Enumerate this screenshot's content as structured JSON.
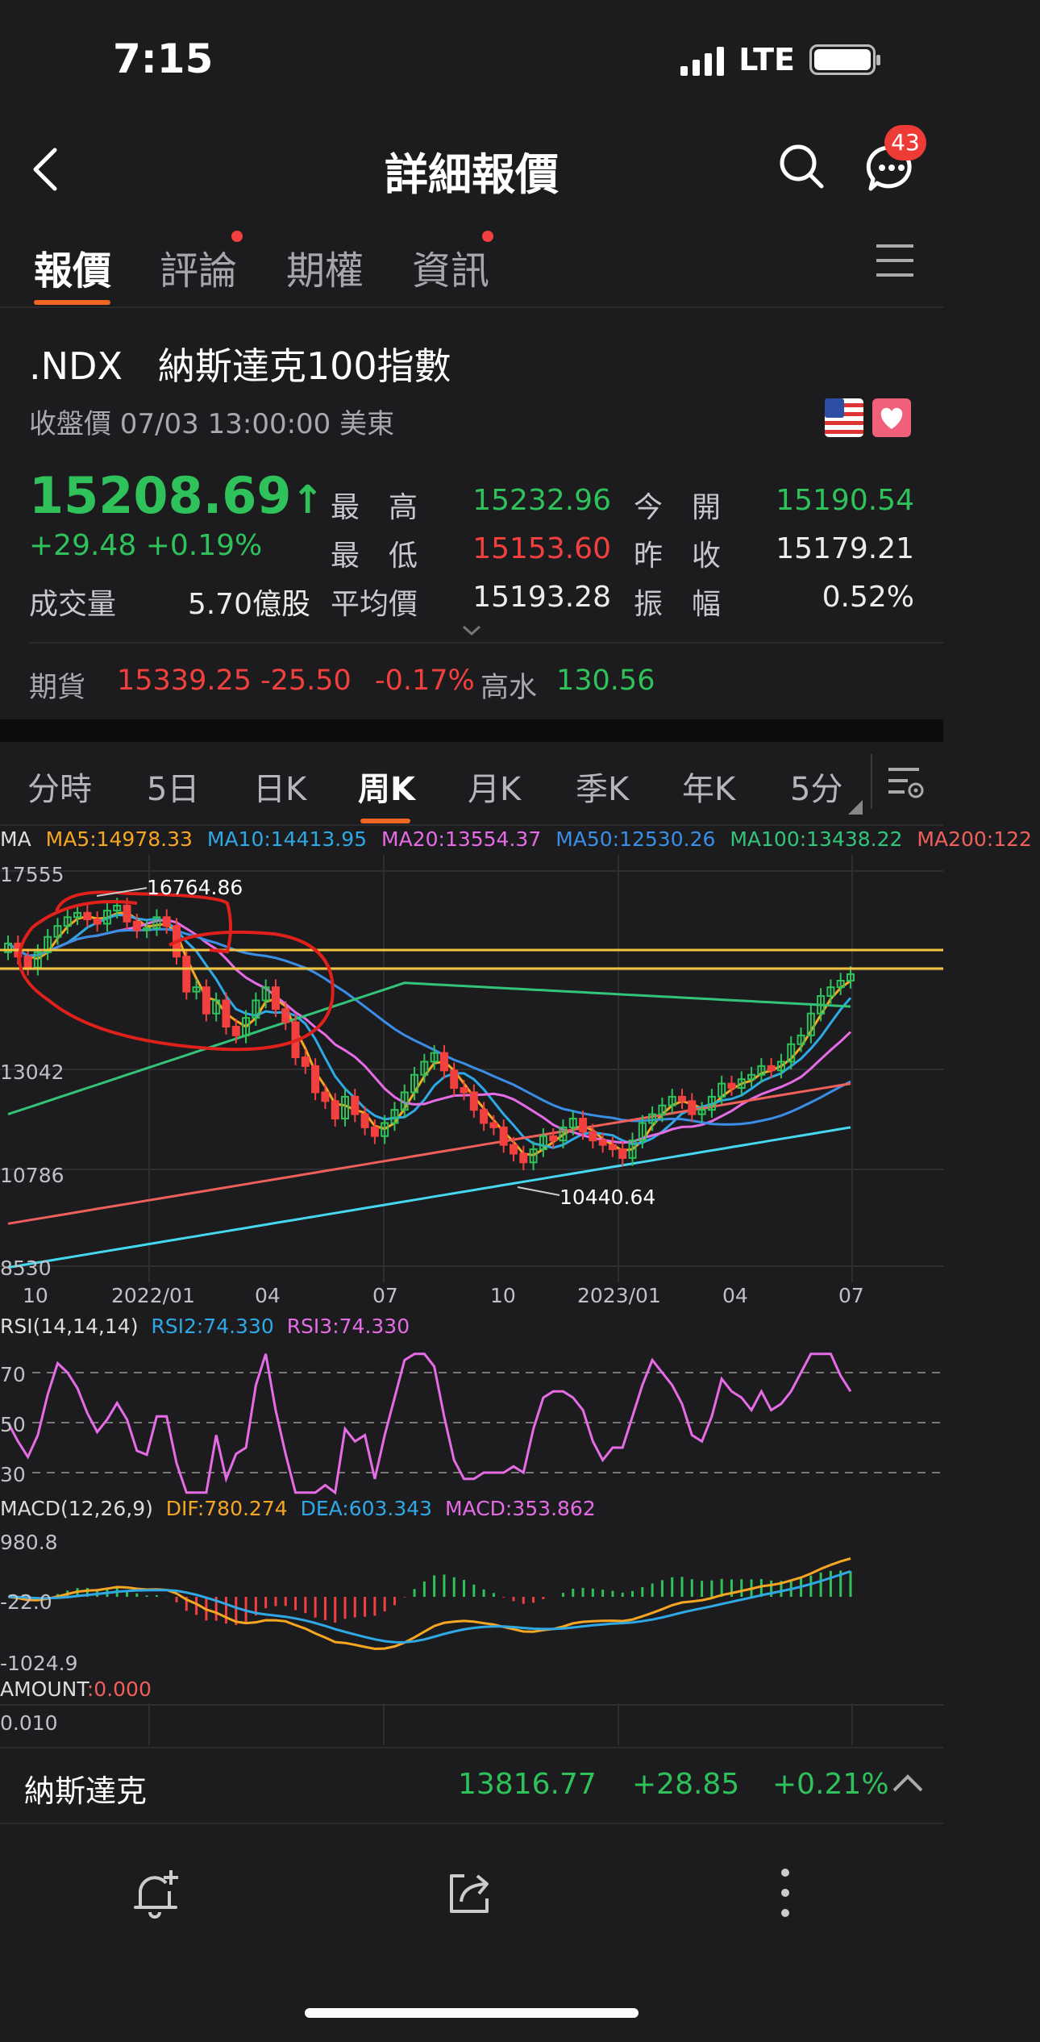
{
  "status_bar": {
    "time": "7:15",
    "network": "LTE"
  },
  "nav": {
    "title": "詳細報價",
    "notification_count": "43"
  },
  "tabs": [
    {
      "label": "報價",
      "active": true,
      "dot": false
    },
    {
      "label": "評論",
      "active": false,
      "dot": true
    },
    {
      "label": "期權",
      "active": false,
      "dot": false
    },
    {
      "label": "資訊",
      "active": false,
      "dot": true
    }
  ],
  "quote": {
    "symbol": ".NDX",
    "name": "納斯達克100指數",
    "close_time": "收盤價 07/03 13:00:00 美東",
    "price": "15208.69",
    "change": "+29.48",
    "change_pct": "+0.19%",
    "volume_label": "成交量",
    "volume_value": "5.70億股",
    "stats": [
      {
        "label": "最　高",
        "value": "15232.96",
        "color": "#2fc25b"
      },
      {
        "label": "今　開",
        "value": "15190.54",
        "color": "#2fc25b"
      },
      {
        "label": "最　低",
        "value": "15153.60",
        "color": "#f2403e"
      },
      {
        "label": "昨　收",
        "value": "15179.21",
        "color": "#ececec"
      },
      {
        "label": "平均價",
        "value": "15193.28",
        "color": "#ececec"
      },
      {
        "label": "振　幅",
        "value": "0.52%",
        "color": "#ececec"
      }
    ]
  },
  "futures": {
    "label": "期貨",
    "price": "15339.25",
    "change": "-25.50",
    "change_pct": "-0.17%",
    "premium_label": "高水",
    "premium": "130.56"
  },
  "period_tabs": [
    "分時",
    "5日",
    "日K",
    "周K",
    "月K",
    "季K",
    "年K",
    "5分"
  ],
  "active_period": "周K",
  "chart_data": {
    "type": "candlestick",
    "ma_title": "MA",
    "ma": [
      {
        "name": "MA5",
        "value": "MA5:14978.33",
        "color": "#f5a623"
      },
      {
        "name": "MA10",
        "value": "MA10:14413.95",
        "color": "#2fa8e6"
      },
      {
        "name": "MA20",
        "value": "MA20:13554.37",
        "color": "#e66ce6"
      },
      {
        "name": "MA50",
        "value": "MA50:12530.26",
        "color": "#3a8ee6"
      },
      {
        "name": "MA100",
        "value": "MA100:13438.22",
        "color": "#33c47a"
      },
      {
        "name": "MA200",
        "value": "MA200:122",
        "color": "#f0605a"
      }
    ],
    "y_ticks": [
      "17555",
      "13042",
      "10786",
      "8530"
    ],
    "x_ticks": [
      "10",
      "2022/01",
      "04",
      "07",
      "10",
      "2023/01",
      "04",
      "07"
    ],
    "high_label": "16764.86",
    "low_label": "10440.64",
    "closes": [
      15900,
      15600,
      15350,
      15700,
      16050,
      16300,
      16500,
      16600,
      16450,
      16350,
      16650,
      16764,
      16400,
      16200,
      16250,
      16500,
      16300,
      15600,
      14800,
      14900,
      14300,
      14600,
      14000,
      13800,
      14200,
      14600,
      14900,
      14400,
      14100,
      13300,
      13100,
      12500,
      12300,
      11900,
      12400,
      12000,
      11700,
      11500,
      11800,
      12100,
      12500,
      12900,
      13200,
      13400,
      13000,
      12600,
      12500,
      12100,
      11800,
      11700,
      11300,
      11100,
      10900,
      11200,
      11500,
      11400,
      11700,
      11900,
      11600,
      11400,
      11300,
      11200,
      11000,
      11400,
      11800,
      12000,
      12200,
      12400,
      12300,
      12000,
      12100,
      12400,
      12700,
      12600,
      12800,
      12900,
      13100,
      13000,
      13200,
      13600,
      13800,
      14300,
      14700,
      14900,
      15050,
      15200
    ]
  },
  "rsi": {
    "title": "RSI(14,14,14)",
    "rsi2": "RSI2:74.330",
    "rsi3": "RSI3:74.330",
    "levels": [
      "70",
      "50",
      "30"
    ]
  },
  "macd": {
    "title": "MACD(12,26,9)",
    "dif": "DIF:780.274",
    "dea": "DEA:603.343",
    "macd": "MACD:353.862",
    "ticks": [
      "980.8",
      "-22.0",
      "-1024.9"
    ]
  },
  "amount": {
    "title": "AMOUNT",
    "value": ":0.000",
    "tick": "0.010"
  },
  "bottom_ticker": {
    "name": "納斯達克",
    "price": "13816.77",
    "change": "+28.85",
    "change_pct": "+0.21%"
  }
}
